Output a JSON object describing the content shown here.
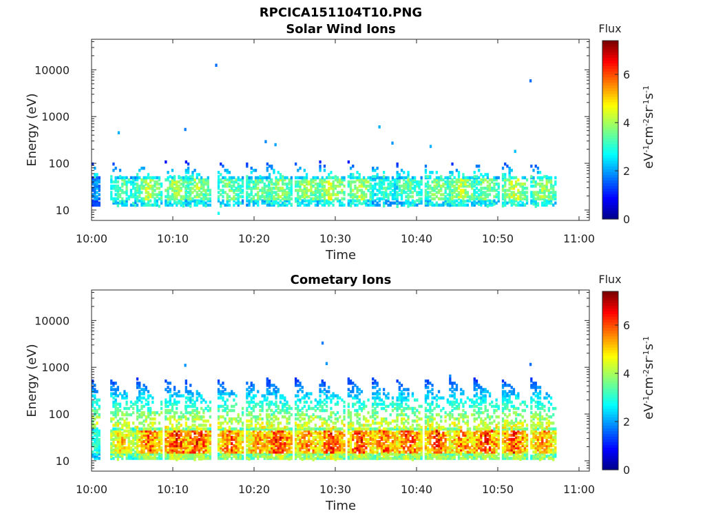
{
  "figure_title": "RPCICA151104T10.PNG",
  "colors": {
    "colormap": [
      "#00008f",
      "#0000ff",
      "#00ffff",
      "#80ff80",
      "#ffff00",
      "#ff0000",
      "#800000"
    ],
    "axes": "#262626"
  },
  "chart_data": [
    {
      "type": "heatmap",
      "title": "Solar Wind Ions",
      "xlabel": "Time",
      "ylabel": "Energy (eV)",
      "y_scale": "log",
      "ylim": [
        6,
        45000
      ],
      "x_ticks": [
        "10:00",
        "10:10",
        "10:20",
        "10:30",
        "10:40",
        "10:50",
        "11:00"
      ],
      "y_ticks": [
        "10",
        "100",
        "1000",
        "10000"
      ],
      "colorbar": {
        "label": "Flux",
        "units_text": "eV-1cm-2sr-1s-1",
        "range": [
          0,
          7.4
        ],
        "ticks": [
          "0",
          "2",
          "4",
          "6"
        ]
      },
      "bursts_minutes": [
        0,
        2.3,
        5.5,
        9,
        11.5,
        15.5,
        19,
        21.5,
        25,
        28,
        31.5,
        34.5,
        37.5,
        41,
        44,
        47,
        50.5,
        54
      ],
      "peak_flux_at_bursts": [
        2.3,
        3.8,
        4.6,
        4.6,
        4.4,
        4.1,
        4.1,
        4.4,
        4.4,
        4.9,
        4.6,
        3.5,
        4.0,
        4.3,
        4.7,
        4.2,
        4.8,
        4.4
      ],
      "energy_band_ev": [
        17,
        45
      ],
      "sparse_points": [
        {
          "t": 15.2,
          "e": 12500,
          "flux": 1.6
        },
        {
          "t": 53.9,
          "e": 5800,
          "flux": 1.6
        },
        {
          "t": 11.4,
          "e": 530,
          "flux": 1.7
        },
        {
          "t": 3.2,
          "e": 450,
          "flux": 2.1
        },
        {
          "t": 35.3,
          "e": 600,
          "flux": 2.1
        },
        {
          "t": 21.3,
          "e": 290,
          "flux": 1.8
        },
        {
          "t": 22.5,
          "e": 250,
          "flux": 2.0
        },
        {
          "t": 36.9,
          "e": 270,
          "flux": 1.9
        },
        {
          "t": 41.6,
          "e": 230,
          "flux": 2.1
        },
        {
          "t": 52.0,
          "e": 180,
          "flux": 2.2
        },
        {
          "t": 15.5,
          "e": 8.5,
          "flux": 2.8
        }
      ]
    },
    {
      "type": "heatmap",
      "title": "Cometary Ions",
      "xlabel": "Time",
      "ylabel": "Energy (eV)",
      "y_scale": "log",
      "ylim": [
        6,
        45000
      ],
      "x_ticks": [
        "10:00",
        "10:10",
        "10:20",
        "10:30",
        "10:40",
        "10:50",
        "11:00"
      ],
      "y_ticks": [
        "10",
        "100",
        "1000",
        "10000"
      ],
      "colorbar": {
        "label": "Flux",
        "units_text": "eV-1cm-2sr-1s-1",
        "range": [
          0,
          7.4
        ],
        "ticks": [
          "0",
          "2",
          "4",
          "6"
        ]
      },
      "bursts_minutes": [
        0,
        2.3,
        5.5,
        9,
        11.5,
        15.5,
        19,
        21.5,
        25,
        28,
        31.5,
        34.5,
        37.5,
        41,
        44,
        47,
        50.5,
        54
      ],
      "peak_flux_at_bursts": [
        3.8,
        5.6,
        6.6,
        7.0,
        7.0,
        6.6,
        6.2,
        7.0,
        6.5,
        6.9,
        6.9,
        6.6,
        6.8,
        6.9,
        6.4,
        6.9,
        6.8,
        6.3
      ],
      "energy_band_ev": [
        15,
        45
      ],
      "sparse_points": [
        {
          "t": 28.3,
          "e": 3300,
          "flux": 1.7
        },
        {
          "t": 28.8,
          "e": 1200,
          "flux": 1.9
        },
        {
          "t": 53.9,
          "e": 1150,
          "flux": 1.6
        },
        {
          "t": 44.0,
          "e": 650,
          "flux": 1.8
        },
        {
          "t": 11.4,
          "e": 1100,
          "flux": 1.9
        }
      ]
    }
  ]
}
